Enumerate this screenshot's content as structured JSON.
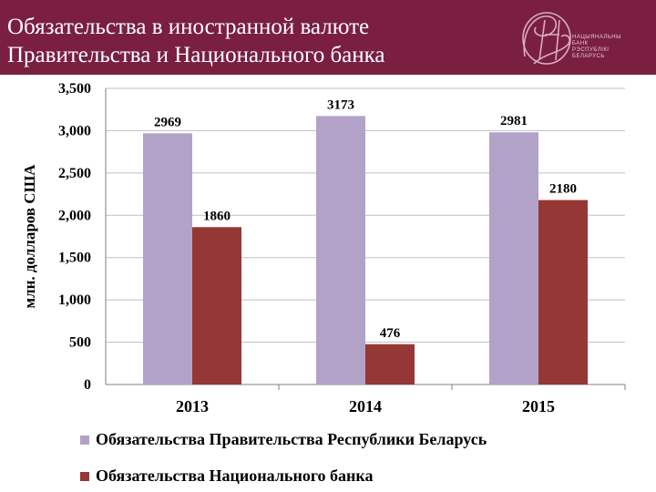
{
  "header": {
    "title_lines": [
      "Обязательства в иностранной валюте",
      "Правительства и Национального банка"
    ],
    "logo_text_lines": [
      "НАЦЫЯНАЛЬНЫ",
      "БАНК",
      "РЭСПУБЛІКІ",
      "БЕЛАРУСЬ"
    ],
    "bg_color": "#7a1f40"
  },
  "chart_data": {
    "type": "bar",
    "title": "",
    "xlabel": "",
    "ylabel": "млн. долларов США",
    "categories": [
      "2013",
      "2014",
      "2015"
    ],
    "series": [
      {
        "name": "Обязательства Правительства Республики Беларусь",
        "values": [
          2969,
          3173,
          2981
        ],
        "color": "#b3a2c7"
      },
      {
        "name": "Обязательства Национального банка",
        "values": [
          1860,
          476,
          2180
        ],
        "color": "#953735"
      }
    ],
    "ylim": [
      0,
      3500
    ],
    "yticks": [
      "0",
      "500",
      "1,000",
      "1,500",
      "2,000",
      "2,500",
      "3,000",
      "3,500"
    ],
    "grid": true,
    "legend": "bottom"
  }
}
